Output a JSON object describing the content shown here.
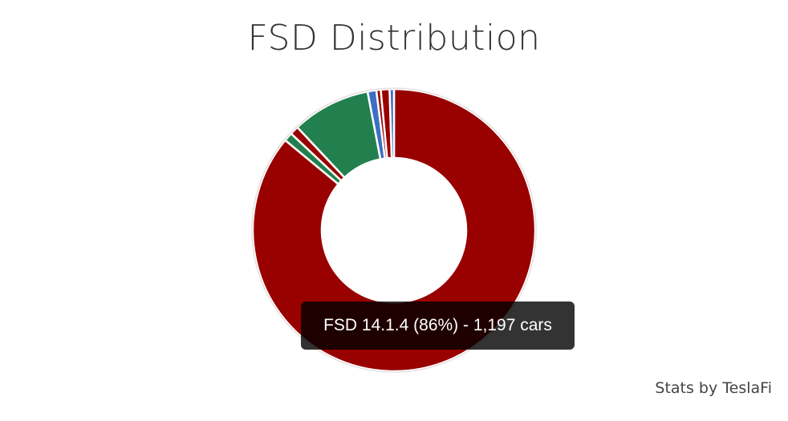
{
  "chart_data": {
    "type": "pie",
    "title": "FSD Distribution",
    "donut": true,
    "legend": "none",
    "slices": [
      {
        "value": 86,
        "color": "#990000"
      },
      {
        "value": 1,
        "color": "#22804f"
      },
      {
        "value": 1,
        "color": "#990000"
      },
      {
        "value": 9,
        "color": "#22804f"
      },
      {
        "value": 1,
        "color": "#3c6fc4"
      },
      {
        "value": 0.5,
        "color": "#990000"
      },
      {
        "value": 1,
        "color": "#990000"
      },
      {
        "value": 0.5,
        "color": "#3c6fc4"
      }
    ],
    "tooltip": "FSD 14.1.4 (86%) - 1,197 cars"
  },
  "footer": {
    "credit": "Stats by TeslaFi"
  }
}
